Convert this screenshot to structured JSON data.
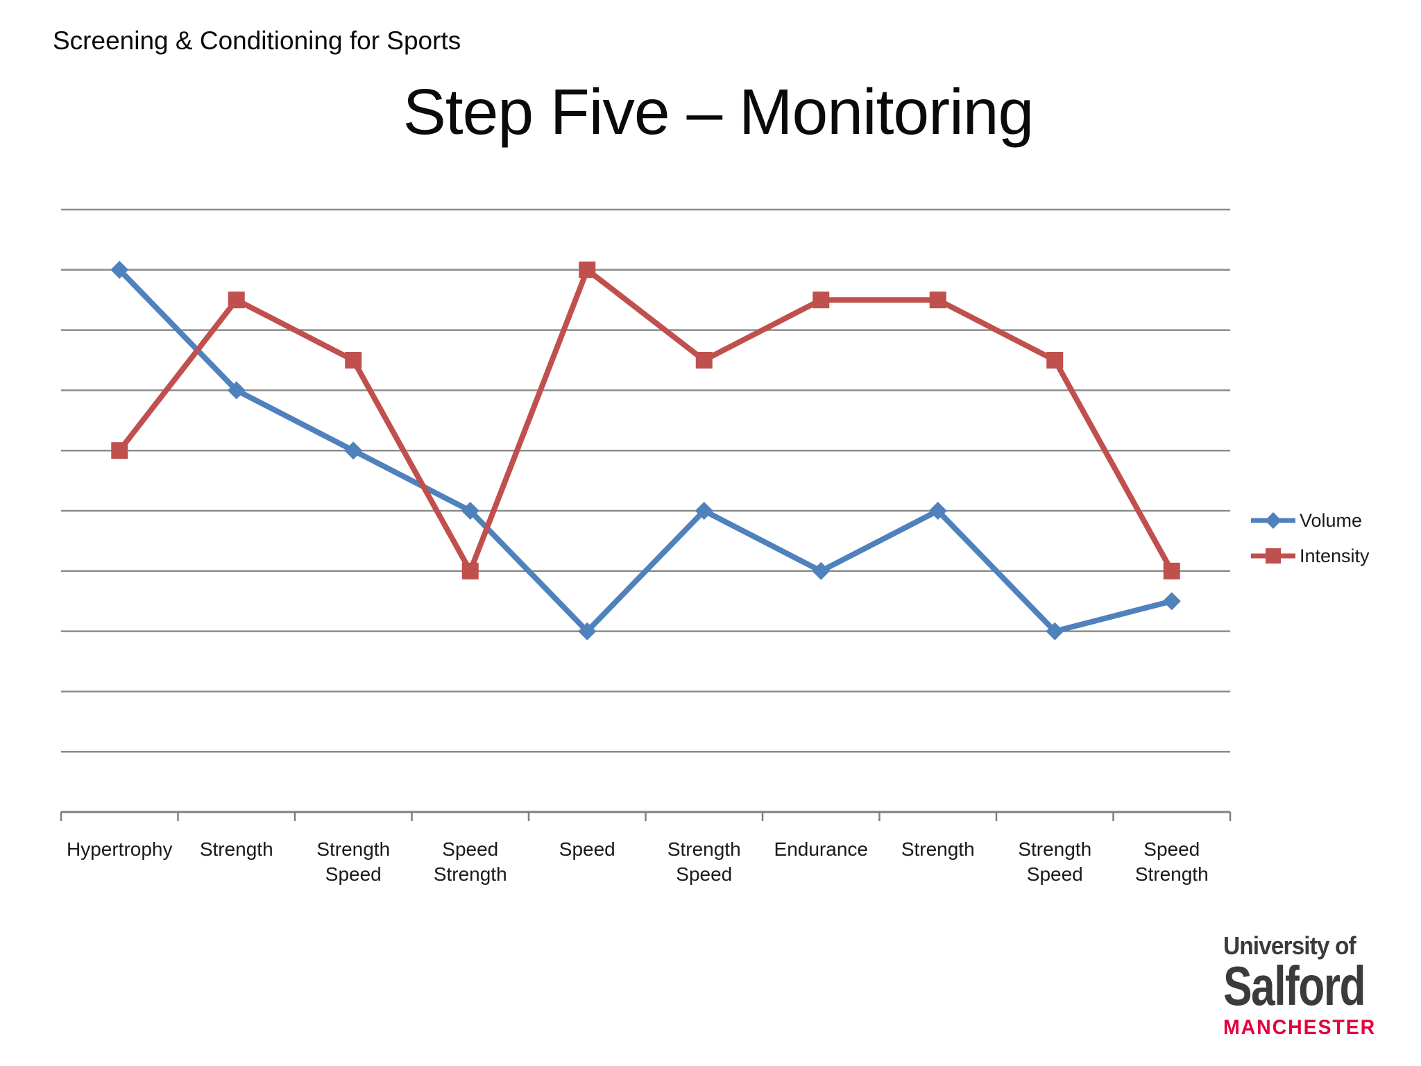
{
  "page": {
    "header": "Screening & Conditioning for Sports",
    "title": "Step Five – Monitoring"
  },
  "chart_data": {
    "type": "line",
    "title": "Step Five – Monitoring",
    "categories": [
      "Hypertrophy",
      "Strength",
      "Strength\nSpeed",
      "Speed\nStrength",
      "Speed",
      "Strength\nSpeed",
      "Endurance",
      "Strength",
      "Strength\nSpeed",
      "Speed\nStrength"
    ],
    "series": [
      {
        "name": "Volume",
        "marker": "diamond",
        "color": "#4F81BD",
        "values": [
          9,
          7,
          6,
          5,
          3,
          5,
          4,
          5,
          3,
          3.5
        ]
      },
      {
        "name": "Intensity",
        "marker": "square",
        "color": "#C0504D",
        "values": [
          6,
          8.5,
          7.5,
          4,
          9,
          7.5,
          8.5,
          8.5,
          7.5,
          4
        ]
      }
    ],
    "ylim": [
      0,
      10
    ],
    "grid_step": 1,
    "gridlines": true,
    "y_tick_labels_visible": false,
    "legend_position": "right",
    "gridline_color": "#8C8C8C",
    "axis_color": "#7F7F7F"
  },
  "logo": {
    "line1": "University of",
    "line2": "Salford",
    "line3": "MANCHESTER",
    "text_color": "#3B3B3D",
    "accent_color": "#E2003C"
  }
}
